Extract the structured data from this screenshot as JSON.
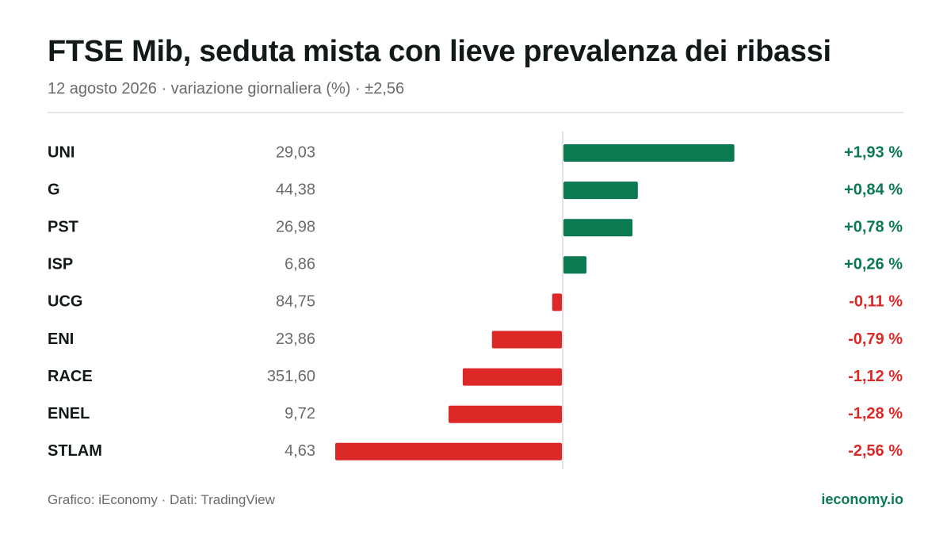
{
  "header": {
    "title": "FTSE Mib, seduta mista con lieve prevalenza dei ribassi",
    "subtitle": "12 agosto 2026 · variazione giornaliera (%) · ±2,56"
  },
  "chart_data": {
    "type": "bar",
    "orientation": "horizontal",
    "title": "FTSE Mib, seduta mista con lieve prevalenza dei ribassi",
    "xlabel": "",
    "ylabel": "",
    "xlim": [
      -2.56,
      2.56
    ],
    "categories": [
      "UNI",
      "G",
      "PST",
      "ISP",
      "UCG",
      "ENI",
      "RACE",
      "ENEL",
      "STLAM"
    ],
    "prices": [
      "29,03",
      "44,38",
      "26,98",
      "6,86",
      "84,75",
      "23,86",
      "351,60",
      "9,72",
      "4,63"
    ],
    "values": [
      1.93,
      0.84,
      0.78,
      0.26,
      -0.11,
      -0.79,
      -1.12,
      -1.28,
      -2.56
    ],
    "value_labels": [
      "+1,93 %",
      "+0,84 %",
      "+0,78 %",
      "+0,26 %",
      "-0,11 %",
      "-0,79 %",
      "-1,12 %",
      "-1,28 %",
      "-2,56 %"
    ],
    "colors": {
      "positive": "#0b7a50",
      "negative": "#dd2828"
    },
    "grid": false,
    "legend": "none"
  },
  "footer": {
    "source": "Grafico: iEconomy · Dati: TradingView",
    "site": "ieconomy.io"
  }
}
